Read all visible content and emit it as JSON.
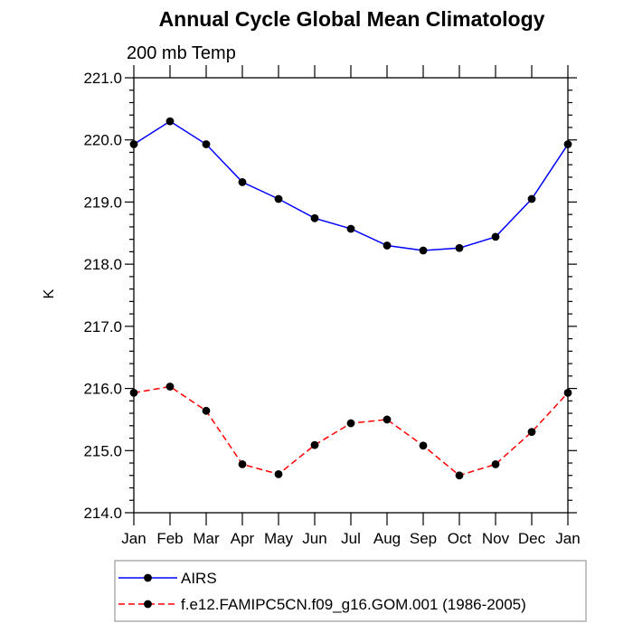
{
  "chart_data": {
    "type": "line",
    "title": "Annual Cycle Global Mean Climatology",
    "subtitle": "200 mb Temp",
    "ylabel": "K",
    "xlabel": "",
    "categories": [
      "Jan",
      "Feb",
      "Mar",
      "Apr",
      "May",
      "Jun",
      "Jul",
      "Aug",
      "Sep",
      "Oct",
      "Nov",
      "Dec",
      "Jan"
    ],
    "ylim": [
      214.0,
      221.0
    ],
    "ytick_major_step": 1.0,
    "ytick_minor_step": 0.2,
    "ytick_decimals": 1,
    "grid": false,
    "legend_position": "bottom-left",
    "legend_border_color": "#999999",
    "axis_color": "#000000",
    "marker_color": "#000000",
    "series": [
      {
        "name": "AIRS",
        "color": "#0000ff",
        "line_style": "solid",
        "marker": "filled-circle",
        "values": [
          219.93,
          220.3,
          219.93,
          219.32,
          219.05,
          218.74,
          218.57,
          218.3,
          218.22,
          218.26,
          218.44,
          219.05,
          219.93
        ]
      },
      {
        "name": "f.e12.FAMIPC5CN.f09_g16.GOM.001 (1986-2005)",
        "color": "#ff0000",
        "line_style": "dashed",
        "marker": "filled-circle",
        "values": [
          215.93,
          216.03,
          215.64,
          214.78,
          214.62,
          215.09,
          215.44,
          215.5,
          215.08,
          214.6,
          214.78,
          215.3,
          215.93
        ]
      }
    ]
  }
}
